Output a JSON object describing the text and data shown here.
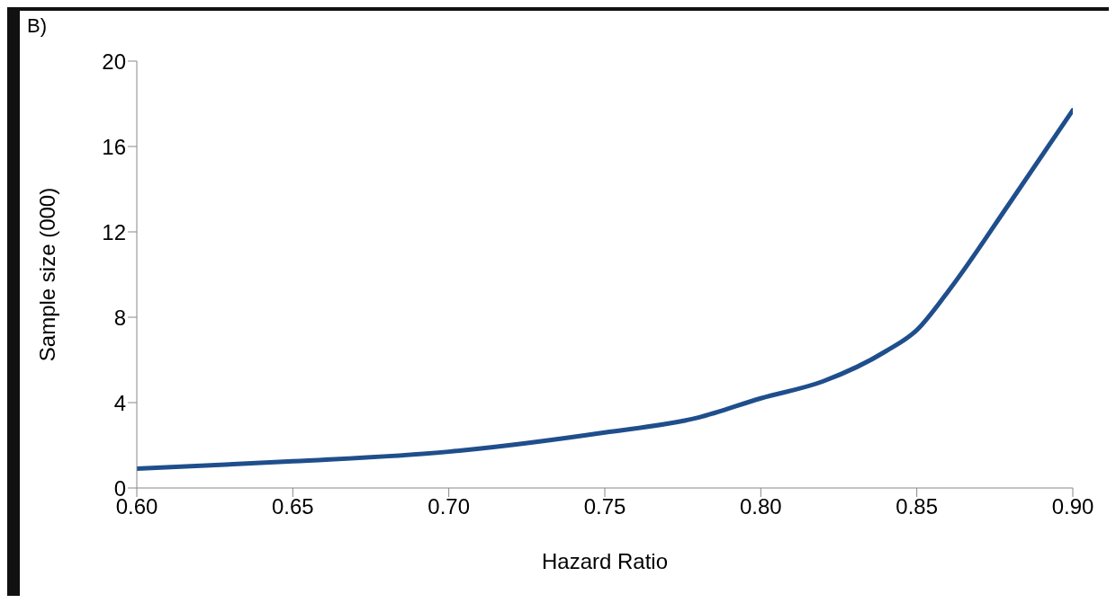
{
  "chart_data": {
    "type": "line",
    "title": "B)",
    "xlabel": "Hazard Ratio",
    "ylabel": "Sample size (000)",
    "x": [
      0.6,
      0.65,
      0.7,
      0.75,
      0.78,
      0.8,
      0.82,
      0.84,
      0.85,
      0.86,
      0.88,
      0.9
    ],
    "series": [
      {
        "color": "#1f4e8c",
        "values": [
          0.9,
          1.25,
          1.7,
          2.6,
          3.3,
          4.2,
          5.0,
          6.4,
          7.4,
          9.2,
          13.4,
          17.7
        ]
      }
    ],
    "xlim": [
      0.6,
      0.9
    ],
    "xticks": [
      {
        "value": 0.6,
        "label": "0.60"
      },
      {
        "value": 0.65,
        "label": "0.65"
      },
      {
        "value": 0.7,
        "label": "0.70"
      },
      {
        "value": 0.75,
        "label": "0.75"
      },
      {
        "value": 0.8,
        "label": "0.80"
      },
      {
        "value": 0.85,
        "label": "0.85"
      },
      {
        "value": 0.9,
        "label": "0.90"
      }
    ],
    "ylim": [
      0,
      20
    ],
    "yticks": [
      0,
      4,
      8,
      12,
      16,
      20
    ],
    "grid": false,
    "legend": false,
    "marker": "none",
    "line_style": "solid"
  }
}
